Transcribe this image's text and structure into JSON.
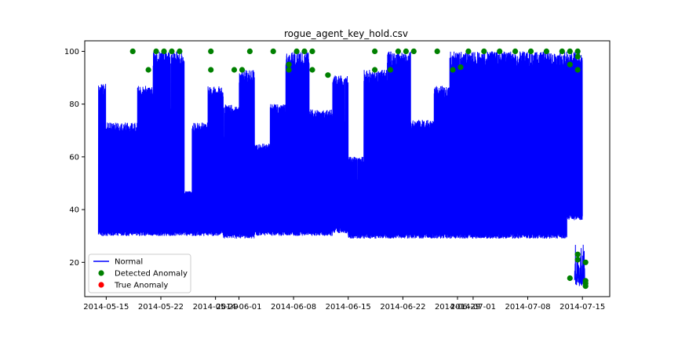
{
  "chart_data": {
    "type": "line",
    "title": "rogue_agent_key_hold.csv",
    "xlabel": "",
    "ylabel": "",
    "x_ticks": [
      "2014-05-15",
      "2014-05-22",
      "2014-05-29",
      "2014-06-01",
      "2014-06-08",
      "2014-06-15",
      "2014-06-22",
      "2014-06-29",
      "2014-07-01",
      "2014-07-08",
      "2014-07-15"
    ],
    "y_ticks": [
      20,
      40,
      60,
      80,
      100
    ],
    "ylim": [
      7,
      104
    ],
    "grid": false,
    "legend": {
      "placement": "lower-left",
      "entries": [
        "Normal",
        "Detected Anomaly",
        "True Anomaly"
      ]
    },
    "colors": {
      "normal": "#0000ff",
      "detected": "#008000",
      "true": "#ff0000"
    },
    "series": [
      {
        "name": "Normal",
        "segments": [
          {
            "start": "2014-05-14",
            "end": "2014-05-15",
            "min": 30,
            "max": 88
          },
          {
            "start": "2014-05-15",
            "end": "2014-05-19",
            "min": 30,
            "max": 73
          },
          {
            "start": "2014-05-19",
            "end": "2014-05-21",
            "min": 30,
            "max": 87
          },
          {
            "start": "2014-05-21",
            "end": "2014-05-25",
            "min": 30,
            "max": 100
          },
          {
            "start": "2014-05-25",
            "end": "2014-05-26",
            "min": 30,
            "max": 47
          },
          {
            "start": "2014-05-26",
            "end": "2014-05-28",
            "min": 30,
            "max": 73
          },
          {
            "start": "2014-05-28",
            "end": "2014-05-30",
            "min": 30,
            "max": 87
          },
          {
            "start": "2014-05-30",
            "end": "2014-06-01",
            "min": 29,
            "max": 80
          },
          {
            "start": "2014-06-01",
            "end": "2014-06-03",
            "min": 29,
            "max": 93
          },
          {
            "start": "2014-06-03",
            "end": "2014-06-05",
            "min": 30,
            "max": 65
          },
          {
            "start": "2014-06-05",
            "end": "2014-06-07",
            "min": 30,
            "max": 80
          },
          {
            "start": "2014-06-07",
            "end": "2014-06-10",
            "min": 30,
            "max": 100
          },
          {
            "start": "2014-06-10",
            "end": "2014-06-13",
            "min": 30,
            "max": 78
          },
          {
            "start": "2014-06-13",
            "end": "2014-06-15",
            "min": 31,
            "max": 91
          },
          {
            "start": "2014-06-15",
            "end": "2014-06-17",
            "min": 29,
            "max": 60
          },
          {
            "start": "2014-06-17",
            "end": "2014-06-20",
            "min": 29,
            "max": 93
          },
          {
            "start": "2014-06-20",
            "end": "2014-06-23",
            "min": 29,
            "max": 100
          },
          {
            "start": "2014-06-23",
            "end": "2014-06-26",
            "min": 29,
            "max": 74
          },
          {
            "start": "2014-06-26",
            "end": "2014-06-28",
            "min": 29,
            "max": 87
          },
          {
            "start": "2014-06-28",
            "end": "2014-07-13",
            "min": 29,
            "max": 100
          },
          {
            "start": "2014-07-13",
            "end": "2014-07-15",
            "min": 36,
            "max": 100
          }
        ]
      },
      {
        "name": "Detected Anomaly",
        "points": [
          {
            "x": "2014-05-18",
            "y": 100
          },
          {
            "x": "2014-05-20",
            "y": 93
          },
          {
            "x": "2014-05-21",
            "y": 100
          },
          {
            "x": "2014-05-22",
            "y": 100
          },
          {
            "x": "2014-05-23",
            "y": 100
          },
          {
            "x": "2014-05-24",
            "y": 100
          },
          {
            "x": "2014-05-28",
            "y": 93
          },
          {
            "x": "2014-05-28",
            "y": 100
          },
          {
            "x": "2014-05-31",
            "y": 93
          },
          {
            "x": "2014-06-01",
            "y": 93
          },
          {
            "x": "2014-06-02",
            "y": 100
          },
          {
            "x": "2014-06-05",
            "y": 100
          },
          {
            "x": "2014-06-07",
            "y": 93
          },
          {
            "x": "2014-06-07",
            "y": 95
          },
          {
            "x": "2014-06-08",
            "y": 100
          },
          {
            "x": "2014-06-09",
            "y": 100
          },
          {
            "x": "2014-06-10",
            "y": 100
          },
          {
            "x": "2014-06-10",
            "y": 93
          },
          {
            "x": "2014-06-12",
            "y": 91
          },
          {
            "x": "2014-06-18",
            "y": 100
          },
          {
            "x": "2014-06-18",
            "y": 93
          },
          {
            "x": "2014-06-20",
            "y": 93
          },
          {
            "x": "2014-06-21",
            "y": 100
          },
          {
            "x": "2014-06-22",
            "y": 100
          },
          {
            "x": "2014-06-23",
            "y": 100
          },
          {
            "x": "2014-06-26",
            "y": 100
          },
          {
            "x": "2014-06-28",
            "y": 93
          },
          {
            "x": "2014-06-29",
            "y": 94
          },
          {
            "x": "2014-06-30",
            "y": 100
          },
          {
            "x": "2014-07-02",
            "y": 100
          },
          {
            "x": "2014-07-04",
            "y": 100
          },
          {
            "x": "2014-07-06",
            "y": 100
          },
          {
            "x": "2014-07-08",
            "y": 100
          },
          {
            "x": "2014-07-10",
            "y": 100
          },
          {
            "x": "2014-07-12",
            "y": 100
          },
          {
            "x": "2014-07-13",
            "y": 100
          },
          {
            "x": "2014-07-13",
            "y": 95
          },
          {
            "x": "2014-07-13",
            "y": 14
          },
          {
            "x": "2014-07-14",
            "y": 23
          },
          {
            "x": "2014-07-14",
            "y": 21
          },
          {
            "x": "2014-07-14",
            "y": 100
          },
          {
            "x": "2014-07-14",
            "y": 98
          },
          {
            "x": "2014-07-14",
            "y": 93
          },
          {
            "x": "2014-07-15",
            "y": 20
          },
          {
            "x": "2014-07-15",
            "y": 13
          },
          {
            "x": "2014-07-15",
            "y": 12
          },
          {
            "x": "2014-07-15",
            "y": 11
          }
        ]
      },
      {
        "name": "True Anomaly",
        "points": []
      }
    ]
  }
}
